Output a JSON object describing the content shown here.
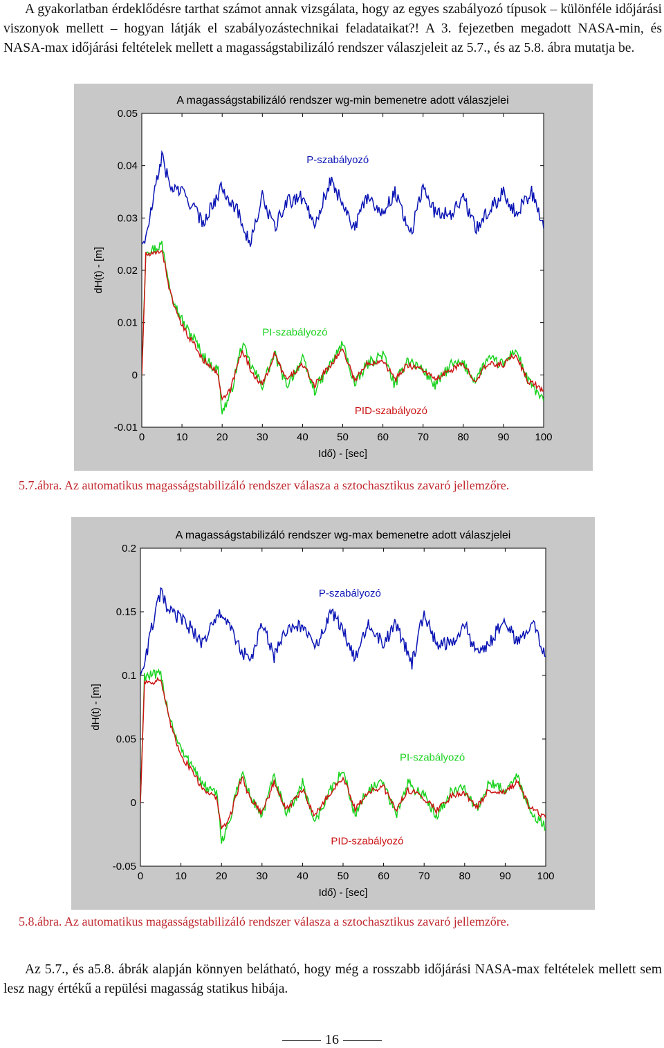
{
  "intro_paragraph": "A gyakorlatban érdeklődésre tarthat számot annak vizsgálata, hogy az egyes szabályozó típusok – különféle időjárási viszonyok mellett – hogyan látják el szabályozástechnikai feladataikat?! A 3. fejezetben megadott NASA-min, és NASA-max időjárási feltételek mellett a magasságstabilizáló rendszer válaszjeleit az 5.7., és az 5.8. ábra mutatja be.",
  "caption_1": "5.7.ábra. Az automatikus magasságstabilizáló rendszer válasza a sztochasztikus zavaró jellemzőre.",
  "caption_2": "5.8.ábra. Az automatikus magasságstabilizáló rendszer válasza a sztochasztikus zavaró jellemzőre.",
  "conclusion_paragraph": "Az 5.7., és a5.8. ábrák alapján könnyen belátható, hogy még a rosszabb időjárási NASA-max feltételek mellett sem lesz nagy értékű a repülési magasság statikus hibája.",
  "page_number": "16",
  "colors": {
    "p": "#0a14b4",
    "pi": "#19d21e",
    "pid": "#cc1414",
    "caption": "#c0282e"
  },
  "chart_data": [
    {
      "type": "line",
      "title": "A magasságstabilizáló rendszer wg-min bemenetre adott válaszjelei",
      "xlabel": "Idő) - [sec]",
      "ylabel": "dH(t) - [m]",
      "xlim": [
        0,
        100
      ],
      "ylim": [
        -0.01,
        0.05
      ],
      "xticks": [
        0,
        10,
        20,
        30,
        40,
        50,
        60,
        70,
        80,
        90,
        100
      ],
      "yticks": [
        -0.01,
        0,
        0.01,
        0.02,
        0.03,
        0.04,
        0.05
      ],
      "ytick_labels": [
        "-0.01",
        "0",
        "0.01",
        "0.02",
        "0.03",
        "0.04",
        "0.05"
      ],
      "grid": false,
      "series": [
        {
          "name": "P-szabályozó",
          "key": "p",
          "x": [
            0,
            1,
            3,
            5,
            7,
            10,
            13,
            15,
            18,
            20,
            24,
            27,
            30,
            33,
            36,
            40,
            43,
            47,
            50,
            53,
            56,
            60,
            63,
            67,
            70,
            73,
            77,
            80,
            83,
            87,
            90,
            93,
            97,
            100
          ],
          "y": [
            0.025,
            0.026,
            0.034,
            0.042,
            0.036,
            0.035,
            0.032,
            0.029,
            0.033,
            0.036,
            0.031,
            0.025,
            0.034,
            0.028,
            0.033,
            0.034,
            0.029,
            0.037,
            0.033,
            0.028,
            0.034,
            0.031,
            0.035,
            0.027,
            0.036,
            0.031,
            0.031,
            0.034,
            0.028,
            0.032,
            0.035,
            0.031,
            0.035,
            0.028
          ]
        },
        {
          "name": "PI-szabályozó",
          "key": "pi",
          "x": [
            0,
            1,
            3,
            5,
            7,
            9,
            11,
            13,
            15,
            17,
            19,
            20,
            22,
            25,
            27,
            30,
            33,
            36,
            40,
            43,
            47,
            50,
            53,
            56,
            60,
            63,
            66,
            70,
            73,
            77,
            80,
            83,
            86,
            90,
            93,
            96,
            100
          ],
          "y": [
            0.0,
            0.024,
            0.024,
            0.025,
            0.017,
            0.012,
            0.009,
            0.007,
            0.004,
            0.002,
            0.001,
            -0.007,
            -0.004,
            0.006,
            0.002,
            -0.002,
            0.004,
            -0.002,
            0.003,
            -0.003,
            0.002,
            0.006,
            -0.002,
            0.002,
            0.004,
            -0.002,
            0.003,
            0.001,
            -0.002,
            0.002,
            0.002,
            -0.001,
            0.003,
            0.002,
            0.005,
            -0.001,
            -0.005
          ]
        },
        {
          "name": "PID-szabályozó",
          "key": "pid",
          "x": [
            0,
            1,
            3,
            5,
            7,
            9,
            11,
            13,
            15,
            17,
            19,
            20,
            22,
            25,
            27,
            30,
            33,
            36,
            40,
            43,
            47,
            50,
            53,
            56,
            60,
            63,
            66,
            70,
            73,
            77,
            80,
            83,
            86,
            90,
            93,
            96,
            100
          ],
          "y": [
            0.0,
            0.023,
            0.023,
            0.024,
            0.016,
            0.011,
            0.008,
            0.006,
            0.003,
            0.002,
            0.0,
            -0.005,
            -0.003,
            0.005,
            0.001,
            -0.002,
            0.004,
            -0.001,
            0.002,
            -0.002,
            0.002,
            0.005,
            -0.001,
            0.002,
            0.003,
            -0.001,
            0.002,
            0.001,
            -0.001,
            0.001,
            0.002,
            -0.001,
            0.002,
            0.002,
            0.004,
            -0.001,
            -0.003
          ]
        }
      ],
      "annotations": [
        {
          "text": "P-szabályozó",
          "series": "p",
          "x": 41,
          "y": 0.0405
        },
        {
          "text": "PI-szabályozó",
          "series": "pi",
          "x": 30,
          "y": 0.0075
        },
        {
          "text": "PID-szabályozó",
          "series": "pid",
          "x": 53,
          "y": -0.0075
        }
      ]
    },
    {
      "type": "line",
      "title": "A magasságstabilizáló rendszer wg-max bemenetre adott válaszjelei",
      "xlabel": "Idő) - [sec]",
      "ylabel": "dH(t) - [m]",
      "xlim": [
        0,
        100
      ],
      "ylim": [
        -0.05,
        0.2
      ],
      "xticks": [
        0,
        10,
        20,
        30,
        40,
        50,
        60,
        70,
        80,
        90,
        100
      ],
      "yticks": [
        -0.05,
        0,
        0.05,
        0.1,
        0.15,
        0.2
      ],
      "ytick_labels": [
        "-0.05",
        "0",
        "0.05",
        "0.1",
        "0.15",
        "0.2"
      ],
      "grid": false,
      "series": [
        {
          "name": "P-szabályozó",
          "key": "p",
          "x": [
            0,
            1,
            3,
            5,
            7,
            10,
            13,
            15,
            18,
            20,
            24,
            27,
            30,
            33,
            36,
            40,
            43,
            47,
            50,
            53,
            56,
            60,
            63,
            67,
            70,
            73,
            77,
            80,
            83,
            87,
            90,
            93,
            97,
            100
          ],
          "y": [
            0.1,
            0.11,
            0.14,
            0.165,
            0.15,
            0.145,
            0.135,
            0.125,
            0.14,
            0.15,
            0.125,
            0.11,
            0.14,
            0.115,
            0.135,
            0.14,
            0.12,
            0.15,
            0.135,
            0.115,
            0.14,
            0.125,
            0.14,
            0.11,
            0.15,
            0.125,
            0.125,
            0.14,
            0.115,
            0.13,
            0.145,
            0.125,
            0.14,
            0.115
          ]
        },
        {
          "name": "PI-szabályozó",
          "key": "pi",
          "x": [
            0,
            1,
            3,
            5,
            7,
            9,
            11,
            13,
            15,
            17,
            19,
            20,
            22,
            25,
            27,
            30,
            33,
            36,
            40,
            43,
            47,
            50,
            53,
            56,
            60,
            63,
            66,
            70,
            73,
            77,
            80,
            83,
            86,
            90,
            93,
            96,
            100
          ],
          "y": [
            0.0,
            0.1,
            0.1,
            0.1,
            0.07,
            0.05,
            0.035,
            0.03,
            0.015,
            0.01,
            0.005,
            -0.03,
            -0.015,
            0.025,
            0.005,
            -0.01,
            0.02,
            -0.01,
            0.015,
            -0.015,
            0.01,
            0.025,
            -0.01,
            0.01,
            0.015,
            -0.01,
            0.015,
            0.005,
            -0.01,
            0.01,
            0.01,
            -0.005,
            0.015,
            0.01,
            0.02,
            -0.005,
            -0.02
          ]
        },
        {
          "name": "PID-szabályozó",
          "key": "pid",
          "x": [
            0,
            1,
            3,
            5,
            7,
            9,
            11,
            13,
            15,
            17,
            19,
            20,
            22,
            25,
            27,
            30,
            33,
            36,
            40,
            43,
            47,
            50,
            53,
            56,
            60,
            63,
            66,
            70,
            73,
            77,
            80,
            83,
            86,
            90,
            93,
            96,
            100
          ],
          "y": [
            0.0,
            0.095,
            0.095,
            0.097,
            0.066,
            0.046,
            0.032,
            0.025,
            0.012,
            0.008,
            0.002,
            -0.022,
            -0.012,
            0.02,
            0.004,
            -0.008,
            0.016,
            -0.006,
            0.01,
            -0.01,
            0.008,
            0.02,
            -0.006,
            0.008,
            0.012,
            -0.006,
            0.01,
            0.004,
            -0.006,
            0.006,
            0.008,
            -0.004,
            0.01,
            0.008,
            0.016,
            -0.004,
            -0.012
          ]
        }
      ],
      "annotations": [
        {
          "text": "P-szabályozó",
          "series": "p",
          "x": 44,
          "y": 0.162
        },
        {
          "text": "PI-szabályozó",
          "series": "pi",
          "x": 64,
          "y": 0.033
        },
        {
          "text": "PID-szabályozó",
          "series": "pid",
          "x": 47,
          "y": -0.033
        }
      ]
    }
  ]
}
